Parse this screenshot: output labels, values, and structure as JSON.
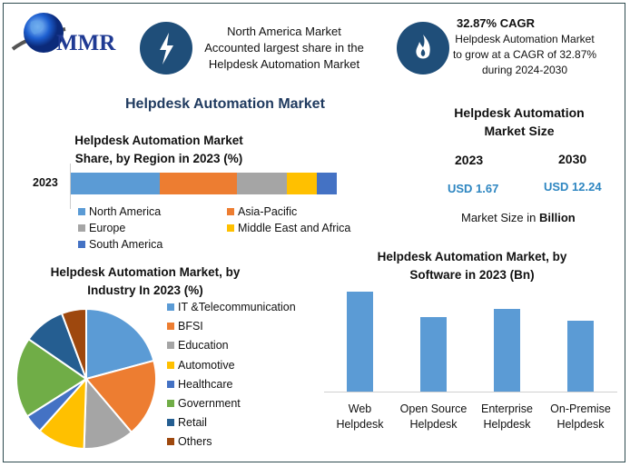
{
  "logo": {
    "text": "MMR"
  },
  "highlight1": {
    "icon": "lightning-bolt-icon",
    "text": "North America Market Accounted largest share in the Helpdesk Automation Market"
  },
  "highlight2": {
    "icon": "flame-icon",
    "headline": "32.87% CAGR",
    "text": "Helpdesk Automation Market to grow at a CAGR of 32.87% during 2024-2030"
  },
  "main_title": "Helpdesk Automation Market",
  "market_size": {
    "title": "Helpdesk Automation Market Size",
    "year1": "2023",
    "value1": "USD 1.67",
    "year2": "2030",
    "value2": "USD 12.24",
    "note_prefix": "Market Size in ",
    "note_bold": "Billion"
  },
  "chart_data": [
    {
      "type": "bar",
      "orientation": "horizontal-stacked",
      "title": "Helpdesk Automation Market Share, by Region in 2023 (%)",
      "categories": [
        "2023"
      ],
      "series": [
        {
          "name": "North America",
          "values": [
            33.4
          ],
          "color": "#5b9bd5"
        },
        {
          "name": "Asia-Pacific",
          "values": [
            29.0
          ],
          "color": "#ed7d31"
        },
        {
          "name": "Europe",
          "values": [
            18.8
          ],
          "color": "#a5a5a5"
        },
        {
          "name": "Middle East and Africa",
          "values": [
            11.3
          ],
          "color": "#ffc000"
        },
        {
          "name": "South America",
          "values": [
            7.5
          ],
          "color": "#4472c4"
        }
      ],
      "legend": "bottom"
    },
    {
      "type": "pie",
      "title": "Helpdesk Automation Market, by Industry In 2023 (%)",
      "labels": [
        "IT &Telecommunication",
        "BFSI",
        "Education",
        "Automotive",
        "Healthcare",
        "Government",
        "Retail",
        "Others"
      ],
      "values": [
        20.8,
        18.0,
        11.7,
        11.1,
        4.4,
        18.6,
        9.7,
        5.7
      ],
      "colors": [
        "#5b9bd5",
        "#ed7d31",
        "#a5a5a5",
        "#ffc000",
        "#4472c4",
        "#70ad47",
        "#255e91",
        "#9e480e"
      ],
      "legend": "right"
    },
    {
      "type": "bar",
      "title": "Helpdesk Automation Market, by Software in 2023 (Bn)",
      "categories": [
        "Web Helpdesk",
        "Open Source Helpdesk",
        "Enterprise Helpdesk",
        "On-Premise Helpdesk"
      ],
      "category_lines": [
        [
          "Web",
          "Helpdesk"
        ],
        [
          "Open Source",
          "Helpdesk"
        ],
        [
          "Enterprise",
          "Helpdesk"
        ],
        [
          "On-Premise",
          "Helpdesk"
        ]
      ],
      "values": [
        0.51,
        0.38,
        0.42,
        0.36
      ],
      "color": "#5b9bd5",
      "grid": false
    }
  ]
}
